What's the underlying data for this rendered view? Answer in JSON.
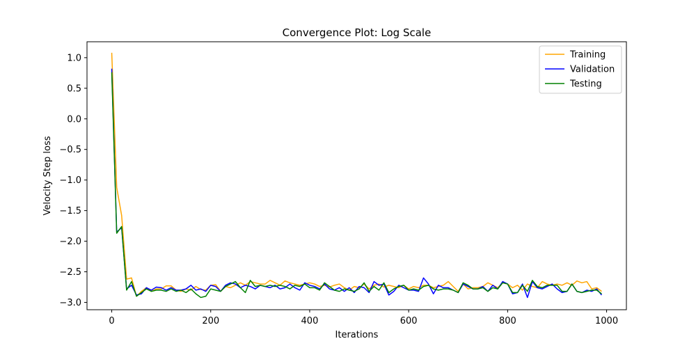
{
  "chart_data": {
    "type": "line",
    "title": "Convergence Plot: Log Scale",
    "xlabel": "Iterations",
    "ylabel": "Velocity Step loss",
    "xlim": [
      -50,
      1040
    ],
    "ylim": [
      -3.12,
      1.26
    ],
    "xticks": [
      0,
      200,
      400,
      600,
      800,
      1000
    ],
    "yticks": [
      1.0,
      0.5,
      0.0,
      -0.5,
      -1.0,
      -1.5,
      -2.0,
      -2.5,
      -3.0
    ],
    "ytick_labels": [
      "1.0",
      "0.5",
      "0.0",
      "−0.5",
      "−1.0",
      "−1.5",
      "−2.0",
      "−2.5",
      "−3.0"
    ],
    "grid": false,
    "legend_position": "top-right",
    "x": [
      0,
      10,
      20,
      30,
      40,
      50,
      60,
      70,
      80,
      90,
      100,
      110,
      120,
      130,
      140,
      150,
      160,
      170,
      180,
      190,
      200,
      210,
      220,
      230,
      240,
      250,
      260,
      270,
      280,
      290,
      300,
      310,
      320,
      330,
      340,
      350,
      360,
      370,
      380,
      390,
      400,
      410,
      420,
      430,
      440,
      450,
      460,
      470,
      480,
      490,
      500,
      510,
      520,
      530,
      540,
      550,
      560,
      570,
      580,
      590,
      600,
      610,
      620,
      630,
      640,
      650,
      660,
      670,
      680,
      690,
      700,
      710,
      720,
      730,
      740,
      750,
      760,
      770,
      780,
      790,
      800,
      810,
      820,
      830,
      840,
      850,
      860,
      870,
      880,
      890,
      900,
      910,
      920,
      930,
      940,
      950,
      960,
      970,
      980,
      990
    ],
    "series": [
      {
        "name": "Training",
        "color": "#ffa500",
        "values": [
          1.08,
          -1.12,
          -1.58,
          -2.62,
          -2.6,
          -2.9,
          -2.82,
          -2.76,
          -2.82,
          -2.78,
          -2.78,
          -2.73,
          -2.73,
          -2.8,
          -2.82,
          -2.78,
          -2.8,
          -2.74,
          -2.79,
          -2.8,
          -2.72,
          -2.71,
          -2.82,
          -2.74,
          -2.76,
          -2.72,
          -2.68,
          -2.72,
          -2.66,
          -2.68,
          -2.7,
          -2.7,
          -2.64,
          -2.68,
          -2.72,
          -2.65,
          -2.68,
          -2.7,
          -2.72,
          -2.7,
          -2.68,
          -2.7,
          -2.74,
          -2.72,
          -2.75,
          -2.72,
          -2.7,
          -2.76,
          -2.8,
          -2.74,
          -2.76,
          -2.7,
          -2.78,
          -2.72,
          -2.7,
          -2.75,
          -2.72,
          -2.74,
          -2.76,
          -2.72,
          -2.78,
          -2.74,
          -2.76,
          -2.72,
          -2.72,
          -2.76,
          -2.74,
          -2.72,
          -2.66,
          -2.74,
          -2.82,
          -2.7,
          -2.78,
          -2.76,
          -2.76,
          -2.74,
          -2.68,
          -2.72,
          -2.76,
          -2.68,
          -2.7,
          -2.76,
          -2.72,
          -2.8,
          -2.7,
          -2.74,
          -2.76,
          -2.66,
          -2.7,
          -2.72,
          -2.7,
          -2.72,
          -2.68,
          -2.72,
          -2.65,
          -2.68,
          -2.66,
          -2.78,
          -2.76,
          -2.82
        ]
      },
      {
        "name": "Validation",
        "color": "#0000ff",
        "values": [
          0.82,
          -1.85,
          -1.78,
          -2.78,
          -2.72,
          -2.88,
          -2.86,
          -2.76,
          -2.8,
          -2.75,
          -2.76,
          -2.8,
          -2.76,
          -2.8,
          -2.8,
          -2.78,
          -2.72,
          -2.8,
          -2.78,
          -2.82,
          -2.72,
          -2.74,
          -2.82,
          -2.72,
          -2.68,
          -2.7,
          -2.76,
          -2.72,
          -2.74,
          -2.78,
          -2.72,
          -2.74,
          -2.76,
          -2.72,
          -2.78,
          -2.76,
          -2.7,
          -2.76,
          -2.8,
          -2.68,
          -2.72,
          -2.74,
          -2.78,
          -2.7,
          -2.78,
          -2.8,
          -2.76,
          -2.82,
          -2.76,
          -2.84,
          -2.74,
          -2.76,
          -2.84,
          -2.66,
          -2.72,
          -2.7,
          -2.88,
          -2.82,
          -2.72,
          -2.76,
          -2.8,
          -2.8,
          -2.82,
          -2.6,
          -2.7,
          -2.86,
          -2.72,
          -2.76,
          -2.76,
          -2.8,
          -2.84,
          -2.7,
          -2.74,
          -2.78,
          -2.78,
          -2.74,
          -2.82,
          -2.72,
          -2.78,
          -2.66,
          -2.7,
          -2.86,
          -2.84,
          -2.7,
          -2.92,
          -2.66,
          -2.76,
          -2.78,
          -2.74,
          -2.7,
          -2.78,
          -2.84,
          -2.82,
          -2.7,
          -2.82,
          -2.84,
          -2.8,
          -2.82,
          -2.78,
          -2.88
        ]
      },
      {
        "name": "Testing",
        "color": "#008000",
        "values": [
          0.76,
          -1.87,
          -1.76,
          -2.8,
          -2.66,
          -2.9,
          -2.84,
          -2.78,
          -2.82,
          -2.8,
          -2.8,
          -2.82,
          -2.78,
          -2.82,
          -2.8,
          -2.84,
          -2.78,
          -2.86,
          -2.92,
          -2.9,
          -2.78,
          -2.8,
          -2.82,
          -2.74,
          -2.7,
          -2.66,
          -2.76,
          -2.84,
          -2.64,
          -2.74,
          -2.72,
          -2.74,
          -2.72,
          -2.74,
          -2.72,
          -2.74,
          -2.78,
          -2.72,
          -2.74,
          -2.7,
          -2.76,
          -2.76,
          -2.8,
          -2.68,
          -2.74,
          -2.8,
          -2.82,
          -2.78,
          -2.8,
          -2.82,
          -2.78,
          -2.68,
          -2.82,
          -2.74,
          -2.8,
          -2.68,
          -2.84,
          -2.78,
          -2.74,
          -2.72,
          -2.8,
          -2.78,
          -2.8,
          -2.74,
          -2.72,
          -2.78,
          -2.8,
          -2.78,
          -2.78,
          -2.8,
          -2.84,
          -2.68,
          -2.72,
          -2.78,
          -2.78,
          -2.76,
          -2.82,
          -2.76,
          -2.78,
          -2.68,
          -2.7,
          -2.84,
          -2.84,
          -2.72,
          -2.82,
          -2.64,
          -2.74,
          -2.76,
          -2.72,
          -2.72,
          -2.72,
          -2.82,
          -2.82,
          -2.7,
          -2.82,
          -2.84,
          -2.82,
          -2.8,
          -2.8,
          -2.86
        ]
      }
    ]
  }
}
